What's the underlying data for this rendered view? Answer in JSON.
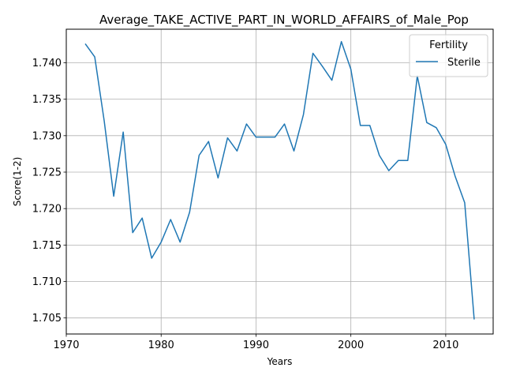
{
  "chart_data": {
    "type": "line",
    "title": "Average_TAKE_ACTIVE_PART_IN_WORLD_AFFAIRS_of_Male_Pop",
    "xlabel": "Years",
    "ylabel": "Score(1-2)",
    "xlim": [
      1970,
      2015
    ],
    "ylim": [
      1.7028,
      1.7446
    ],
    "xticks": [
      1970,
      1980,
      1990,
      2000,
      2010
    ],
    "xtick_labels": [
      "1970",
      "1980",
      "1990",
      "2000",
      "2010"
    ],
    "yticks": [
      1.705,
      1.71,
      1.715,
      1.72,
      1.725,
      1.73,
      1.735,
      1.74
    ],
    "ytick_labels": [
      "1.705",
      "1.710",
      "1.715",
      "1.720",
      "1.725",
      "1.730",
      "1.735",
      "1.740"
    ],
    "grid": true,
    "legend": {
      "title": "Fertility",
      "placement": "top-right"
    },
    "series": [
      {
        "name": "Sterile",
        "color": "#1f77b4",
        "x": [
          1972,
          1973,
          1974,
          1975,
          1976,
          1977,
          1978,
          1979,
          1980,
          1981,
          1982,
          1983,
          1984,
          1985,
          1986,
          1987,
          1988,
          1989,
          1990,
          1991,
          1992,
          1993,
          1994,
          1995,
          1996,
          1997,
          1998,
          1999,
          2000,
          2001,
          2002,
          2003,
          2004,
          2005,
          2006,
          2007,
          2008,
          2009,
          2010,
          2011,
          2012,
          2013
        ],
        "y": [
          1.7426,
          1.7408,
          1.732,
          1.7217,
          1.7305,
          1.7167,
          1.7187,
          1.7132,
          1.7154,
          1.7185,
          1.7154,
          1.7195,
          1.7273,
          1.7292,
          1.7242,
          1.7297,
          1.7279,
          1.7316,
          1.7298,
          1.7298,
          1.7298,
          1.7316,
          1.7279,
          1.7329,
          1.7413,
          1.7395,
          1.7376,
          1.7429,
          1.7391,
          1.7314,
          1.7314,
          1.7273,
          1.7252,
          1.7266,
          1.7266,
          1.7382,
          1.7318,
          1.7311,
          1.7288,
          1.7244,
          1.7208,
          1.7048
        ]
      }
    ]
  }
}
